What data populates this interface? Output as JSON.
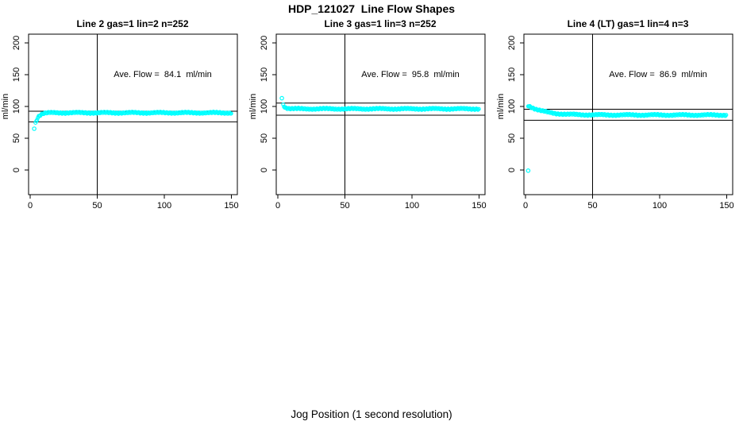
{
  "figure": {
    "title": "HDP_121027  Line Flow Shapes",
    "xlabel": "Jog Position (1 second resolution)",
    "background": "#ffffff",
    "axis_color": "#000000"
  },
  "chart_data": [
    {
      "type": "scatter",
      "title": "Line 2 gas=1 lin=2 n=252",
      "annotation": "Ave. Flow =  84.1  ml/min",
      "ave_flow_ml_min": 84.1,
      "ylabel": "ml/min",
      "x_ticks": [
        0,
        50,
        100,
        150
      ],
      "y_ticks": [
        0,
        50,
        100,
        150,
        200
      ],
      "xlim": [
        -6,
        156
      ],
      "ylim": [
        -40,
        213
      ],
      "grid": false,
      "marker": {
        "shape": "open-circle",
        "color": "#00ffff",
        "radius": 2,
        "step": 0.6
      },
      "reference_lines": {
        "vertical_x": 50,
        "horizontal": [
          92.5,
          75.7
        ]
      },
      "profile": [
        [
          4,
          74
        ],
        [
          5,
          80
        ],
        [
          6,
          84
        ],
        [
          8,
          87.5
        ],
        [
          10,
          89
        ],
        [
          13,
          89.8
        ],
        [
          20,
          90
        ],
        [
          150,
          90
        ]
      ],
      "outliers": [
        [
          3,
          65
        ]
      ]
    },
    {
      "type": "scatter",
      "title": "Line 3 gas=1 lin=3 n=252",
      "annotation": "Ave. Flow =  95.8  ml/min",
      "ave_flow_ml_min": 95.8,
      "ylabel": "ml/min",
      "x_ticks": [
        0,
        50,
        100,
        150
      ],
      "y_ticks": [
        0,
        50,
        100,
        150,
        200
      ],
      "xlim": [
        -6,
        156
      ],
      "ylim": [
        -40,
        213
      ],
      "grid": false,
      "marker": {
        "shape": "open-circle",
        "color": "#00ffff",
        "radius": 2,
        "step": 0.6
      },
      "reference_lines": {
        "vertical_x": 50,
        "horizontal": [
          105.4,
          86.2
        ]
      },
      "profile": [
        [
          4,
          103
        ],
        [
          5,
          99.5
        ],
        [
          6,
          98
        ],
        [
          8,
          96.8
        ],
        [
          12,
          96.3
        ],
        [
          20,
          96.2
        ],
        [
          150,
          96.2
        ]
      ],
      "outliers": [
        [
          3,
          113
        ]
      ]
    },
    {
      "type": "scatter",
      "title": "Line 4 (LT) gas=1 lin=4 n=3",
      "annotation": "Ave. Flow =  86.9  ml/min",
      "ave_flow_ml_min": 86.9,
      "ylabel": "ml/min",
      "x_ticks": [
        0,
        50,
        100,
        150
      ],
      "y_ticks": [
        0,
        50,
        100,
        150,
        200
      ],
      "xlim": [
        -6,
        156
      ],
      "ylim": [
        -40,
        213
      ],
      "grid": false,
      "marker": {
        "shape": "open-circle",
        "color": "#00ffff",
        "radius": 2,
        "step": 0.6
      },
      "reference_lines": {
        "vertical_x": 50,
        "horizontal": [
          95.6,
          78.2
        ]
      },
      "profile": [
        [
          2,
          101.5
        ],
        [
          4,
          99.3
        ],
        [
          6,
          97.3
        ],
        [
          8,
          95.6
        ],
        [
          12,
          93
        ],
        [
          16,
          91
        ],
        [
          22,
          89
        ],
        [
          30,
          87.7
        ],
        [
          40,
          87
        ],
        [
          60,
          86.6
        ],
        [
          150,
          86.5
        ]
      ],
      "outliers": [
        [
          2,
          -1
        ]
      ]
    }
  ]
}
